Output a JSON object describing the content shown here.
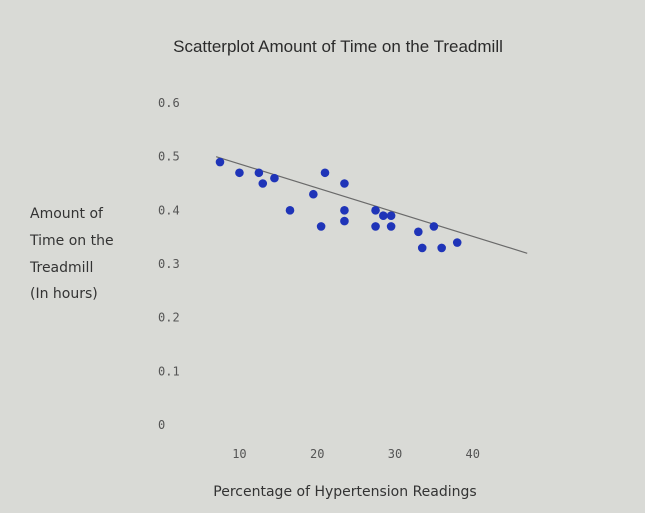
{
  "chart_data": {
    "type": "scatter",
    "title": "Scatterplot Amount of Time on the Treadmill",
    "xlabel": "Percentage of Hypertension Readings",
    "ylabel_lines": [
      "Amount of",
      "Time on the",
      "Treadmill",
      "(In hours)"
    ],
    "x_ticks": [
      "10",
      "20",
      "30",
      "40"
    ],
    "y_ticks": [
      "0",
      "0.1",
      "0.2",
      "0.3",
      "0.4",
      "0.5",
      "0.6"
    ],
    "xlim": [
      3,
      48
    ],
    "ylim": [
      0,
      0.6
    ],
    "grid": false,
    "legend": "none",
    "series": [
      {
        "points": [
          {
            "x": 7.5,
            "y": 0.49
          },
          {
            "x": 10,
            "y": 0.47
          },
          {
            "x": 12.5,
            "y": 0.47
          },
          {
            "x": 13,
            "y": 0.45
          },
          {
            "x": 14.5,
            "y": 0.46
          },
          {
            "x": 16.5,
            "y": 0.4
          },
          {
            "x": 19.5,
            "y": 0.43
          },
          {
            "x": 20.5,
            "y": 0.37
          },
          {
            "x": 21,
            "y": 0.47
          },
          {
            "x": 23.5,
            "y": 0.45
          },
          {
            "x": 23.5,
            "y": 0.4
          },
          {
            "x": 23.5,
            "y": 0.38
          },
          {
            "x": 27.5,
            "y": 0.4
          },
          {
            "x": 27.5,
            "y": 0.37
          },
          {
            "x": 28.5,
            "y": 0.39
          },
          {
            "x": 29.5,
            "y": 0.39
          },
          {
            "x": 29.5,
            "y": 0.37
          },
          {
            "x": 33,
            "y": 0.36
          },
          {
            "x": 33.5,
            "y": 0.33
          },
          {
            "x": 35,
            "y": 0.37
          },
          {
            "x": 36,
            "y": 0.33
          },
          {
            "x": 38,
            "y": 0.34
          }
        ]
      }
    ],
    "trendline": {
      "x": [
        7,
        47
      ],
      "y": [
        0.5,
        0.32
      ]
    }
  },
  "colors": {
    "background": "#d9dad6",
    "point": "#1f34b8",
    "trendline": "#6a6a6a",
    "text": "#333333"
  }
}
